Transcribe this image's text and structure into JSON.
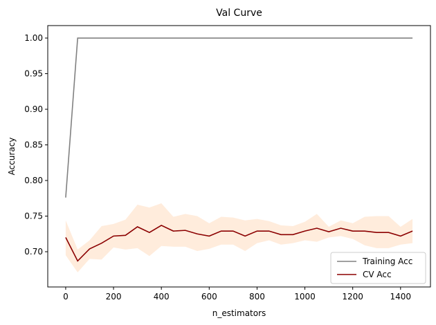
{
  "chart_data": {
    "type": "line",
    "title": "Val Curve",
    "xlabel": "n_estimators",
    "ylabel": "Accuracy",
    "xlim": [
      -75,
      1525
    ],
    "ylim": [
      0.6505,
      1.0175
    ],
    "xticks": [
      0,
      200,
      400,
      600,
      800,
      1000,
      1200,
      1400
    ],
    "yticks": [
      0.7,
      0.75,
      0.8,
      0.85,
      0.9,
      0.95,
      1.0
    ],
    "grid": false,
    "legend_position": "lower-right",
    "x": [
      0,
      50,
      100,
      150,
      200,
      250,
      300,
      350,
      400,
      450,
      500,
      550,
      600,
      650,
      700,
      750,
      800,
      850,
      900,
      950,
      1000,
      1050,
      1100,
      1150,
      1200,
      1250,
      1300,
      1350,
      1400,
      1450
    ],
    "series": [
      {
        "name": "Training Acc",
        "color": "#808080",
        "values": [
          0.776,
          1.0,
          1.0,
          1.0,
          1.0,
          1.0,
          1.0,
          1.0,
          1.0,
          1.0,
          1.0,
          1.0,
          1.0,
          1.0,
          1.0,
          1.0,
          1.0,
          1.0,
          1.0,
          1.0,
          1.0,
          1.0,
          1.0,
          1.0,
          1.0,
          1.0,
          1.0,
          1.0,
          1.0,
          1.0
        ]
      },
      {
        "name": "CV Acc",
        "color": "#8b0000",
        "values": [
          0.72,
          0.687,
          0.704,
          0.712,
          0.722,
          0.723,
          0.735,
          0.727,
          0.737,
          0.729,
          0.73,
          0.725,
          0.722,
          0.729,
          0.729,
          0.722,
          0.729,
          0.729,
          0.724,
          0.724,
          0.729,
          0.733,
          0.728,
          0.733,
          0.729,
          0.729,
          0.727,
          0.727,
          0.722,
          0.729
        ],
        "band_color": "#ffdab9",
        "band_upper": [
          0.744,
          0.703,
          0.716,
          0.736,
          0.739,
          0.745,
          0.766,
          0.762,
          0.768,
          0.749,
          0.753,
          0.75,
          0.74,
          0.749,
          0.748,
          0.744,
          0.746,
          0.743,
          0.737,
          0.736,
          0.742,
          0.753,
          0.735,
          0.744,
          0.74,
          0.749,
          0.75,
          0.75,
          0.735,
          0.746
        ],
        "band_lower": [
          0.695,
          0.671,
          0.69,
          0.689,
          0.706,
          0.703,
          0.705,
          0.694,
          0.708,
          0.707,
          0.707,
          0.701,
          0.704,
          0.71,
          0.71,
          0.701,
          0.712,
          0.716,
          0.71,
          0.712,
          0.716,
          0.714,
          0.72,
          0.722,
          0.718,
          0.709,
          0.705,
          0.705,
          0.71,
          0.712
        ]
      }
    ]
  }
}
